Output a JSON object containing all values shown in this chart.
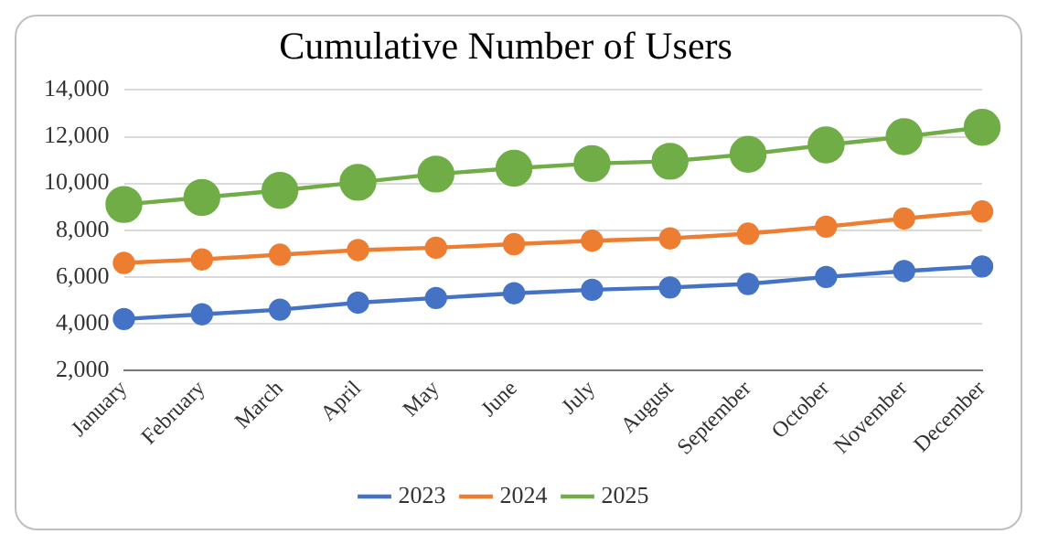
{
  "chart_data": {
    "type": "line",
    "title": "Cumulative Number of Users",
    "categories": [
      "January",
      "February",
      "March",
      "April",
      "May",
      "June",
      "July",
      "August",
      "September",
      "October",
      "November",
      "December"
    ],
    "series": [
      {
        "name": "2023",
        "color": "#4472c4",
        "values": [
          4200,
          4400,
          4600,
          4900,
          5100,
          5300,
          5450,
          5550,
          5700,
          6000,
          6250,
          6450
        ]
      },
      {
        "name": "2024",
        "color": "#ed7d31",
        "values": [
          6600,
          6750,
          6950,
          7150,
          7250,
          7400,
          7550,
          7650,
          7850,
          8150,
          8500,
          8800
        ]
      },
      {
        "name": "2025",
        "color": "#70ad47",
        "values": [
          9100,
          9400,
          9700,
          10050,
          10400,
          10650,
          10850,
          10950,
          11250,
          11650,
          12000,
          12400
        ]
      }
    ],
    "ylim": [
      2000,
      14000
    ],
    "yticks": [
      {
        "value": 2000,
        "label": "2,000"
      },
      {
        "value": 4000,
        "label": "4,000"
      },
      {
        "value": 6000,
        "label": "6,000"
      },
      {
        "value": 8000,
        "label": "8,000"
      },
      {
        "value": 10000,
        "label": "10,000"
      },
      {
        "value": 12000,
        "label": "12,000"
      },
      {
        "value": 14000,
        "label": "14,000"
      }
    ],
    "marker": "circle",
    "grid": "y",
    "legend": "bottom"
  }
}
